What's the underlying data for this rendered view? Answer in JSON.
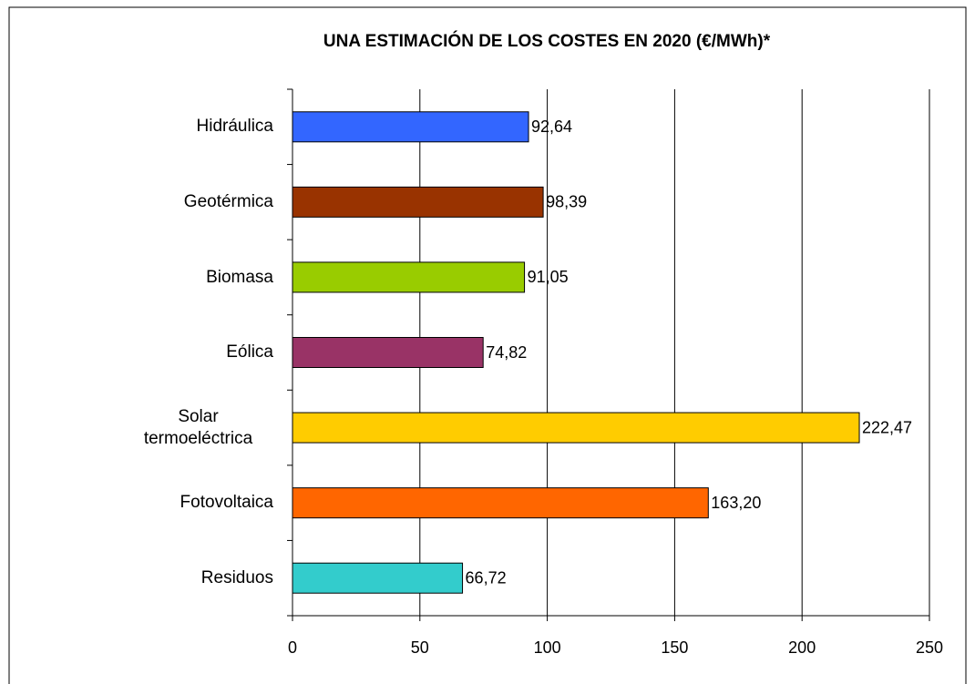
{
  "chart_data": {
    "type": "bar",
    "orientation": "horizontal",
    "title": "UNA ESTIMACIÓN DE LOS COSTES EN 2020 (€/MWh)*",
    "categories": [
      "Hidráulica",
      "Geotérmica",
      "Biomasa",
      "Eólica",
      "Solar termoeléctrica",
      "Fotovoltaica",
      "Residuos"
    ],
    "values": [
      92.64,
      98.39,
      91.05,
      74.82,
      222.47,
      163.2,
      66.72
    ],
    "value_labels": [
      "92,64",
      "98,39",
      "91,05",
      "74,82",
      "222,47",
      "163,20",
      "66,72"
    ],
    "colors": [
      "#3366ff",
      "#993300",
      "#99cc00",
      "#993366",
      "#ffcc00",
      "#ff6600",
      "#33cccc"
    ],
    "xlim": [
      0,
      250
    ],
    "xticks": [
      0,
      50,
      100,
      150,
      200,
      250
    ],
    "grid": true
  }
}
